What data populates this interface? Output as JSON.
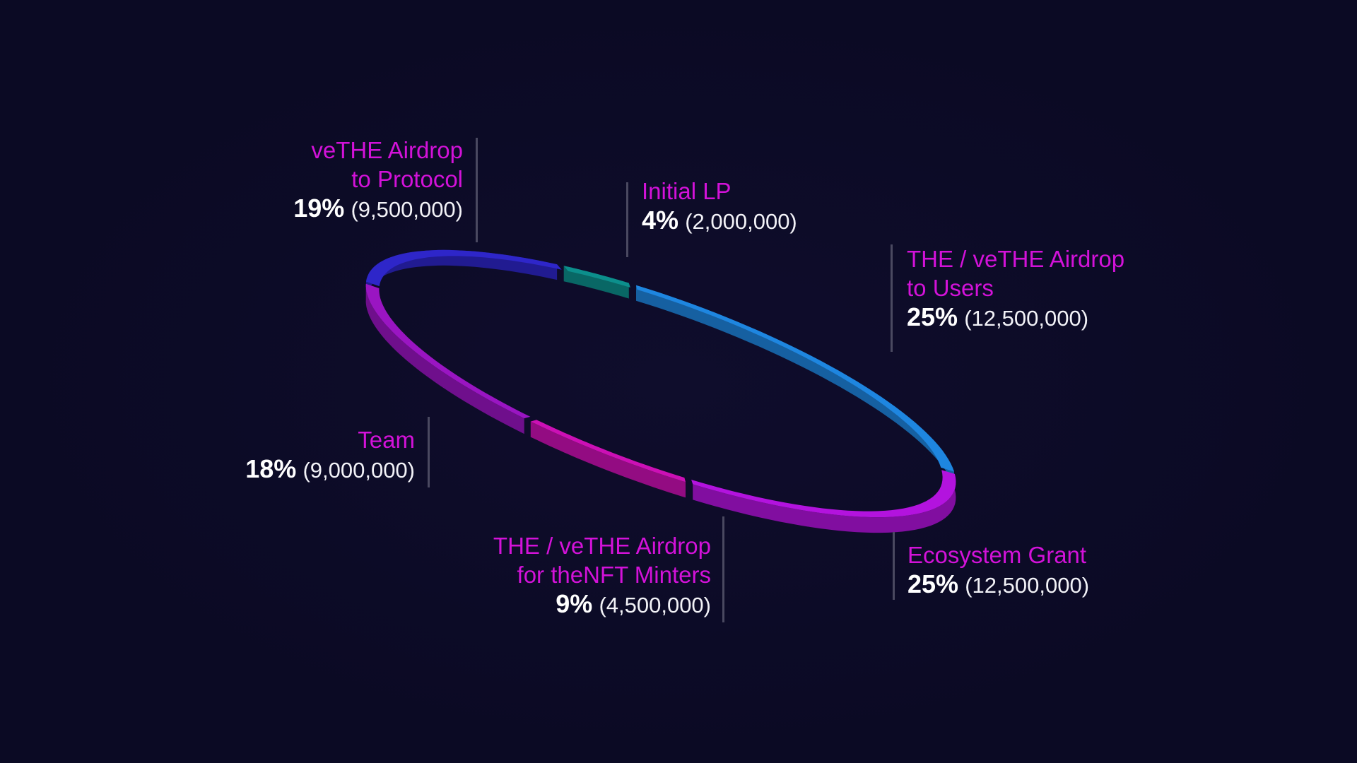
{
  "chart_data": {
    "type": "pie",
    "title": "",
    "segments": [
      {
        "name_lines": [
          "veTHE Airdrop",
          "to Protocol"
        ],
        "percent_label": "19%",
        "amount_label": "(9,500,000)",
        "value": 9500000,
        "percent": 19,
        "color": "#2e26c9"
      },
      {
        "name_lines": [
          "Initial LP"
        ],
        "percent_label": "4%",
        "amount_label": "(2,000,000)",
        "value": 2000000,
        "percent": 4,
        "color": "#0c8f8c"
      },
      {
        "name_lines": [
          "THE / veTHE Airdrop",
          "to Users"
        ],
        "percent_label": "25%",
        "amount_label": "(12,500,000)",
        "value": 12500000,
        "percent": 25,
        "color": "#1e86e0"
      },
      {
        "name_lines": [
          "Ecosystem Grant"
        ],
        "percent_label": "25%",
        "amount_label": "(12,500,000)",
        "value": 12500000,
        "percent": 25,
        "color": "#b313de"
      },
      {
        "name_lines": [
          "THE / veTHE Airdrop",
          "for theNFT Minters"
        ],
        "percent_label": "9%",
        "amount_label": "(4,500,000)",
        "value": 4500000,
        "percent": 9,
        "color": "#cc10b5"
      },
      {
        "name_lines": [
          "Team"
        ],
        "percent_label": "18%",
        "amount_label": "(9,000,000)",
        "value": 9000000,
        "percent": 18,
        "color": "#9a15c2"
      }
    ],
    "legend_position": "around ring",
    "accent_color": "#d312d9",
    "background_color": "#0b0a24"
  }
}
